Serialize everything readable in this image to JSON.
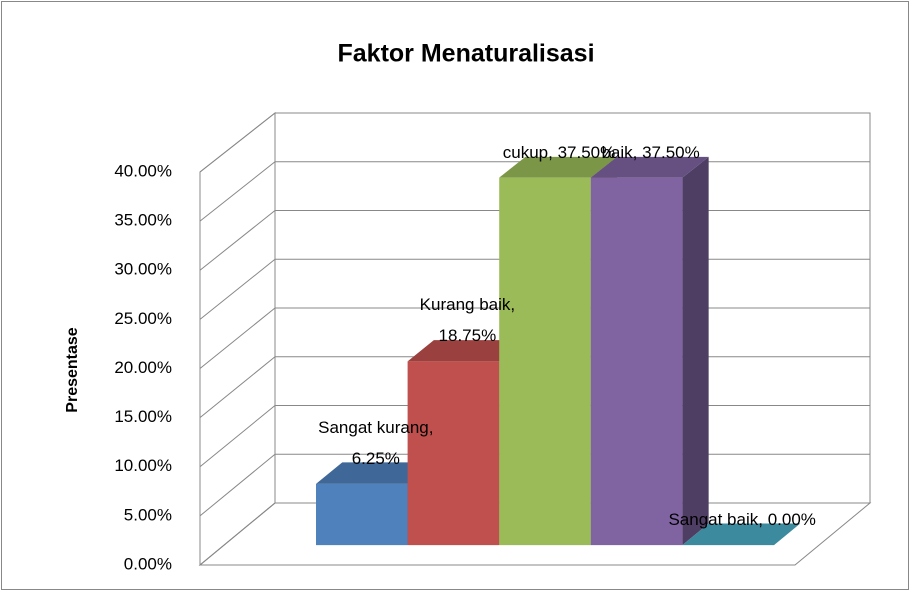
{
  "chart_data": {
    "type": "bar3d",
    "title": "Faktor Menaturalisasi",
    "y_label": "Presentase",
    "categories": [
      "Sangat kurang",
      "Kurang baik",
      "cukup",
      "baik",
      "Sangat baik"
    ],
    "values": [
      6.25,
      18.75,
      37.5,
      37.5,
      0
    ],
    "value_labels": [
      "Sangat kurang, 6.25%",
      "Kurang baik, 18.75%",
      "cukup, 37.50%",
      "baik, 37.50%",
      "Sangat baik, 0.00%"
    ],
    "colors": [
      "#4f81bd",
      "#c0504d",
      "#9bbb59",
      "#8064a2",
      "#4bacc6"
    ],
    "ylim": [
      0,
      40
    ],
    "yticks": [
      {
        "value": 0,
        "label": "0.00%"
      },
      {
        "value": 5,
        "label": "5.00%"
      },
      {
        "value": 10,
        "label": "10.00%"
      },
      {
        "value": 15,
        "label": "15.00%"
      },
      {
        "value": 20,
        "label": "20.00%"
      },
      {
        "value": 25,
        "label": "25.00%"
      },
      {
        "value": 30,
        "label": "30.00%"
      },
      {
        "value": 35,
        "label": "35.00%"
      },
      {
        "value": 40,
        "label": "40.00%"
      }
    ],
    "grid": true
  }
}
